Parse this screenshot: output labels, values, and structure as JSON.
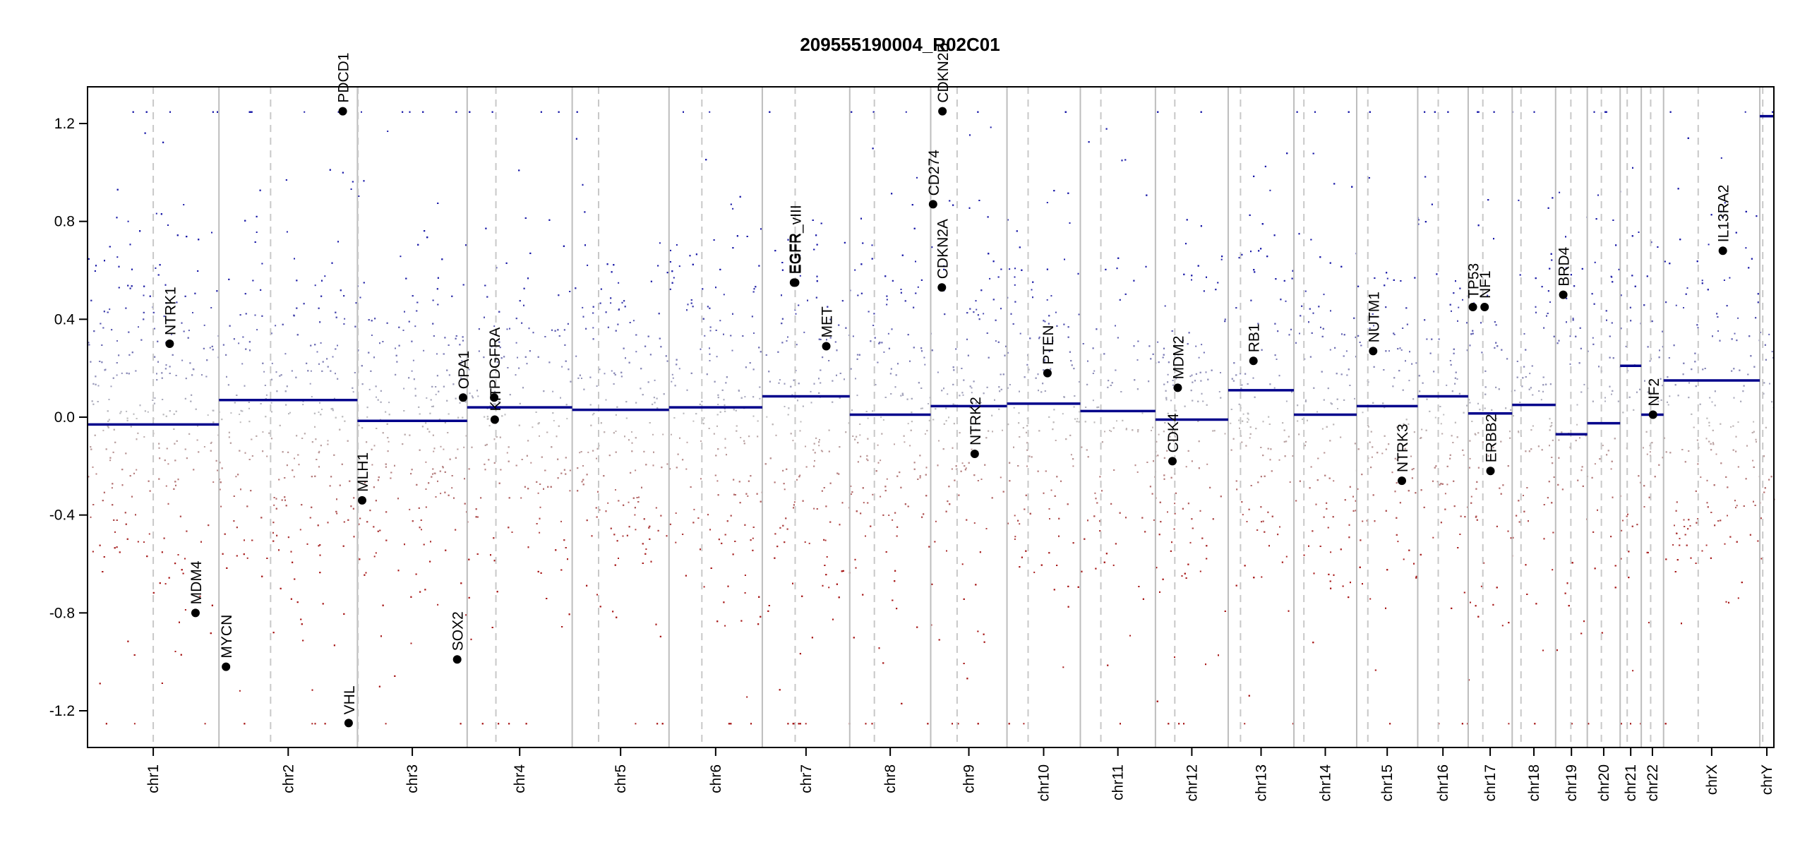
{
  "chart_data": {
    "type": "scatter",
    "title": "209555190004_R02C01",
    "xlabel": "",
    "ylabel": "",
    "ylim": [
      -1.35,
      1.35
    ],
    "yticks": [
      -1.2,
      -0.8,
      -0.4,
      0.0,
      0.4,
      0.8,
      1.2
    ],
    "ytick_labels": [
      "-1.2",
      "-0.8",
      "-0.4",
      "0.0",
      "0.4",
      "0.8",
      "1.2"
    ],
    "xlim": [
      0,
      2874
    ],
    "colors": {
      "gain": "#1a1aa8",
      "loss": "#a81a1a",
      "neutral": "#bfbfbf",
      "segment": "#00008b",
      "boundary": "#bdbdbd",
      "centromere": "#c8c8c8",
      "axis": "#000000",
      "gene": "#000000"
    },
    "chromosomes": [
      {
        "name": "chr1",
        "start": 0,
        "end": 224,
        "centromere": 112,
        "segment": -0.03
      },
      {
        "name": "chr2",
        "start": 224,
        "end": 460,
        "centromere": 312,
        "segment": 0.07
      },
      {
        "name": "chr3",
        "start": 460,
        "end": 647,
        "centromere": 461,
        "segment": -0.015
      },
      {
        "name": "chr4",
        "start": 647,
        "end": 826,
        "centromere": 696,
        "segment": 0.04
      },
      {
        "name": "chr5",
        "start": 826,
        "end": 991,
        "centromere": 871,
        "segment": 0.03
      },
      {
        "name": "chr6",
        "start": 991,
        "end": 1150,
        "centromere": 1047,
        "segment": 0.04
      },
      {
        "name": "chr7",
        "start": 1150,
        "end": 1299,
        "centromere": 1206,
        "segment": 0.085
      },
      {
        "name": "chr8",
        "start": 1299,
        "end": 1437,
        "centromere": 1341,
        "segment": 0.01
      },
      {
        "name": "chr9",
        "start": 1437,
        "end": 1567,
        "centromere": 1482,
        "segment": 0.045
      },
      {
        "name": "chr10",
        "start": 1567,
        "end": 1692,
        "centromere": 1603,
        "segment": 0.055
      },
      {
        "name": "chr11",
        "start": 1692,
        "end": 1820,
        "centromere": 1727,
        "segment": 0.025
      },
      {
        "name": "chr12",
        "start": 1820,
        "end": 1944,
        "centromere": 1853,
        "segment": -0.01
      },
      {
        "name": "chr13",
        "start": 1944,
        "end": 2056,
        "centromere": 1965,
        "segment": 0.11
      },
      {
        "name": "chr14",
        "start": 2056,
        "end": 2163,
        "centromere": 2073,
        "segment": 0.01
      },
      {
        "name": "chr15",
        "start": 2163,
        "end": 2267,
        "centromere": 2182,
        "segment": 0.045
      },
      {
        "name": "chr16",
        "start": 2267,
        "end": 2353,
        "centromere": 2302,
        "segment": 0.085
      },
      {
        "name": "chr17",
        "start": 2353,
        "end": 2428,
        "centromere": 2378,
        "segment": 0.015
      },
      {
        "name": "chr18",
        "start": 2428,
        "end": 2502,
        "centromere": 2443,
        "segment": 0.05
      },
      {
        "name": "chr19",
        "start": 2502,
        "end": 2556,
        "centromere": 2528,
        "segment": -0.07
      },
      {
        "name": "chr20",
        "start": 2556,
        "end": 2612,
        "centromere": 2580,
        "segment": -0.025
      },
      {
        "name": "chr21",
        "start": 2612,
        "end": 2648,
        "centromere": 2624,
        "segment": 0.21
      },
      {
        "name": "chr22",
        "start": 2648,
        "end": 2686,
        "centromere": 2664,
        "segment": 0.01
      },
      {
        "name": "chrX",
        "start": 2686,
        "end": 2850,
        "centromere": 2745,
        "segment": 0.15
      },
      {
        "name": "chrY",
        "start": 2850,
        "end": 2874,
        "centromere": 2855,
        "segment": 1.23
      }
    ],
    "genes": [
      {
        "name": "NTRK1",
        "x": 140,
        "y": 0.3
      },
      {
        "name": "MDM4",
        "x": 184,
        "y": -0.8
      },
      {
        "name": "MYCN",
        "x": 236,
        "y": -1.02
      },
      {
        "name": "PDCD1",
        "x": 435,
        "y": 1.25
      },
      {
        "name": "VHL",
        "x": 445,
        "y": -1.25
      },
      {
        "name": "MLH1",
        "x": 468,
        "y": -0.34
      },
      {
        "name": "SOX2",
        "x": 630,
        "y": -0.99
      },
      {
        "name": "OPA1",
        "x": 640,
        "y": 0.08
      },
      {
        "name": "PDGFRA",
        "x": 693,
        "y": 0.08
      },
      {
        "name": "KIT",
        "x": 694,
        "y": -0.01
      },
      {
        "name": "EGFR",
        "x": 1204,
        "y": 0.55
      },
      {
        "name": "EGFR_vIII",
        "x": 1206,
        "y": 0.55
      },
      {
        "name": "MET",
        "x": 1259,
        "y": 0.29
      },
      {
        "name": "CD274",
        "x": 1441,
        "y": 0.87
      },
      {
        "name": "CDKN2A",
        "x": 1456,
        "y": 0.53
      },
      {
        "name": "CDKN2B",
        "x": 1457,
        "y": 1.25
      },
      {
        "name": "NTRK2",
        "x": 1512,
        "y": -0.15
      },
      {
        "name": "PTEN",
        "x": 1636,
        "y": 0.18
      },
      {
        "name": "CDK4",
        "x": 1849,
        "y": -0.18
      },
      {
        "name": "MDM2",
        "x": 1858,
        "y": 0.12
      },
      {
        "name": "RB1",
        "x": 1987,
        "y": 0.23
      },
      {
        "name": "NUTM1",
        "x": 2191,
        "y": 0.27
      },
      {
        "name": "NTRK3",
        "x": 2240,
        "y": -0.26
      },
      {
        "name": "TP53",
        "x": 2361,
        "y": 0.45
      },
      {
        "name": "NF1",
        "x": 2381,
        "y": 0.45
      },
      {
        "name": "ERBB2",
        "x": 2391,
        "y": -0.22
      },
      {
        "name": "BRD4",
        "x": 2515,
        "y": 0.5
      },
      {
        "name": "NF2",
        "x": 2668,
        "y": 0.01
      },
      {
        "name": "IL13RA2",
        "x": 2787,
        "y": 0.68
      }
    ]
  }
}
